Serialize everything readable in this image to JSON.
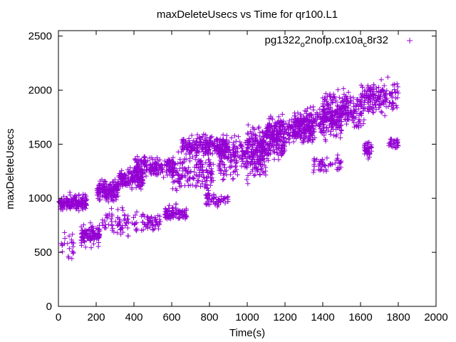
{
  "chart_data": {
    "type": "scatter",
    "title": "maxDeleteUsecs vs Time for qr100.L1",
    "xlabel": "Time(s)",
    "ylabel": "maxDeleteUsecs",
    "xlim": [
      0,
      2000
    ],
    "ylim": [
      0,
      2550
    ],
    "x_ticks": [
      "0",
      "200",
      "400",
      "600",
      "800",
      "1000",
      "1200",
      "1400",
      "1600",
      "1800",
      "2000"
    ],
    "y_ticks": [
      "0",
      "500",
      "1000",
      "1500",
      "2000",
      "2500"
    ],
    "grid": false,
    "legend_position": "top-right",
    "marker": "plus",
    "series": [
      {
        "name_parts": [
          "pg1322",
          "o",
          "2nofp.cx10a",
          "c",
          "8r32"
        ],
        "color": "#9400d3",
        "clusters": [
          {
            "x": [
              0,
              150
            ],
            "y": [
              860,
              1060
            ],
            "n": 170
          },
          {
            "x": [
              10,
              90
            ],
            "y": [
              360,
              760
            ],
            "n": 22
          },
          {
            "x": [
              120,
              220
            ],
            "y": [
              520,
              800
            ],
            "n": 110
          },
          {
            "x": [
              200,
              320
            ],
            "y": [
              950,
              1200
            ],
            "n": 160
          },
          {
            "x": [
              230,
              420
            ],
            "y": [
              600,
              950
            ],
            "n": 70
          },
          {
            "x": [
              320,
              450
            ],
            "y": [
              1050,
              1300
            ],
            "n": 150
          },
          {
            "x": [
              400,
              620
            ],
            "y": [
              1150,
              1420
            ],
            "n": 190
          },
          {
            "x": [
              440,
              540
            ],
            "y": [
              650,
              900
            ],
            "n": 50
          },
          {
            "x": [
              560,
              680
            ],
            "y": [
              760,
              960
            ],
            "n": 90
          },
          {
            "x": [
              600,
              820
            ],
            "y": [
              1000,
              1500
            ],
            "n": 170
          },
          {
            "x": [
              650,
              900
            ],
            "y": [
              1350,
              1620
            ],
            "n": 210
          },
          {
            "x": [
              780,
              900
            ],
            "y": [
              880,
              1100
            ],
            "n": 55
          },
          {
            "x": [
              850,
              1100
            ],
            "y": [
              1100,
              1650
            ],
            "n": 250
          },
          {
            "x": [
              1000,
              1200
            ],
            "y": [
              1300,
              1720
            ],
            "n": 230
          },
          {
            "x": [
              1100,
              1350
            ],
            "y": [
              1450,
              1800
            ],
            "n": 230
          },
          {
            "x": [
              1250,
              1500
            ],
            "y": [
              1500,
              1900
            ],
            "n": 230
          },
          {
            "x": [
              1350,
              1500
            ],
            "y": [
              1200,
              1420
            ],
            "n": 50
          },
          {
            "x": [
              1400,
              1620
            ],
            "y": [
              1580,
              2050
            ],
            "n": 230
          },
          {
            "x": [
              1600,
              1800
            ],
            "y": [
              1700,
              2150
            ],
            "n": 160
          },
          {
            "x": [
              1620,
              1660
            ],
            "y": [
              1350,
              1550
            ],
            "n": 40
          },
          {
            "x": [
              1750,
              1800
            ],
            "y": [
              1450,
              1580
            ],
            "n": 28
          }
        ]
      }
    ]
  }
}
